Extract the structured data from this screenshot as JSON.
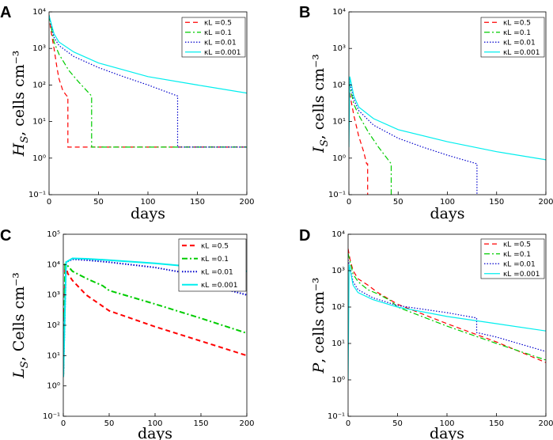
{
  "chart_data": [
    {
      "type": "line",
      "label": "A",
      "ylabel_main": "H",
      "ylabel_sub": "S",
      "ylabel_rest": ", cells cm⁻³",
      "xlabel": "days",
      "log_y": true,
      "legend": "upper right",
      "line_width": 1.2,
      "xlim": [
        0,
        200
      ],
      "xticks": [
        0,
        50,
        100,
        150,
        200
      ],
      "ylim": [
        0.1,
        10000
      ],
      "yticks": [
        {
          "value": 0.1,
          "label": "10⁻¹"
        },
        {
          "value": 1,
          "label": "10⁰"
        },
        {
          "value": 10,
          "label": "10¹"
        },
        {
          "value": 100,
          "label": "10²"
        },
        {
          "value": 1000,
          "label": "10³"
        },
        {
          "value": 10000,
          "label": "10⁴"
        }
      ],
      "series": [
        {
          "name": "κL =0.5",
          "color": "#ff0000",
          "dash": "dashed",
          "x": [
            0,
            2,
            5,
            8,
            10,
            14,
            18,
            19,
            19,
            200
          ],
          "values": [
            8000,
            3000,
            1000,
            300,
            150,
            70,
            50,
            50,
            2,
            2
          ]
        },
        {
          "name": "κL =0.1",
          "color": "#00cc00",
          "dash": "dashdot",
          "x": [
            0,
            5,
            10,
            20,
            30,
            43,
            43,
            200
          ],
          "values": [
            8000,
            1500,
            700,
            250,
            120,
            50,
            2,
            2
          ]
        },
        {
          "name": "κL =0.01",
          "color": "#0000cc",
          "dash": "dotted",
          "x": [
            0,
            5,
            10,
            25,
            50,
            75,
            100,
            130,
            130,
            200
          ],
          "values": [
            8000,
            2000,
            1200,
            600,
            300,
            170,
            100,
            50,
            2,
            2
          ]
        },
        {
          "name": "κL =0.001",
          "color": "#00eeee",
          "dash": "solid",
          "x": [
            0,
            5,
            10,
            25,
            50,
            100,
            150,
            200
          ],
          "values": [
            8000,
            2500,
            1500,
            800,
            400,
            170,
            100,
            60
          ]
        }
      ]
    },
    {
      "type": "line",
      "label": "B",
      "ylabel_main": "I",
      "ylabel_sub": "S",
      "ylabel_rest": ", cells cm⁻³",
      "xlabel": "days",
      "log_y": true,
      "legend": "upper right",
      "line_width": 1.2,
      "xlim": [
        0,
        200
      ],
      "xticks": [
        0,
        50,
        100,
        150,
        200
      ],
      "ylim": [
        0.1,
        10000
      ],
      "yticks": [
        {
          "value": 0.1,
          "label": "10⁻¹"
        },
        {
          "value": 1,
          "label": "10⁰"
        },
        {
          "value": 10,
          "label": "10¹"
        },
        {
          "value": 100,
          "label": "10²"
        },
        {
          "value": 1000,
          "label": "10³"
        },
        {
          "value": 10000,
          "label": "10⁴"
        }
      ],
      "series": [
        {
          "name": "κL =0.5",
          "color": "#ff0000",
          "dash": "dashed",
          "x": [
            0,
            2,
            5,
            10,
            15,
            18,
            19,
            19
          ],
          "values": [
            100,
            40,
            15,
            4,
            1.5,
            0.7,
            0.7,
            0.1
          ]
        },
        {
          "name": "κL =0.1",
          "color": "#00cc00",
          "dash": "dashdot",
          "x": [
            0,
            5,
            10,
            20,
            30,
            43,
            43
          ],
          "values": [
            120,
            30,
            15,
            5,
            2,
            0.7,
            0.1
          ]
        },
        {
          "name": "κL =0.01",
          "color": "#0000cc",
          "dash": "dotted",
          "x": [
            0,
            5,
            10,
            25,
            50,
            75,
            100,
            130,
            130
          ],
          "values": [
            150,
            40,
            20,
            8,
            3.5,
            2,
            1.2,
            0.7,
            0.1
          ]
        },
        {
          "name": "κL =0.001",
          "color": "#00eeee",
          "dash": "solid",
          "x": [
            0,
            1,
            5,
            10,
            25,
            50,
            100,
            150,
            200
          ],
          "values": [
            2,
            170,
            50,
            25,
            12,
            6,
            2.8,
            1.5,
            0.9
          ]
        }
      ]
    },
    {
      "type": "line",
      "label": "C",
      "ylabel_main": "L",
      "ylabel_sub": "S",
      "ylabel_rest": ", Cells cm⁻³",
      "xlabel": "days",
      "log_y": true,
      "legend": "upper right",
      "line_width": 2,
      "xlim": [
        0,
        200
      ],
      "xticks": [
        0,
        50,
        100,
        150,
        200
      ],
      "ylim": [
        0.1,
        100000
      ],
      "yticks": [
        {
          "value": 0.1,
          "label": "10⁻¹"
        },
        {
          "value": 1,
          "label": "10⁰"
        },
        {
          "value": 10,
          "label": "10¹"
        },
        {
          "value": 100,
          "label": "10²"
        },
        {
          "value": 1000,
          "label": "10³"
        },
        {
          "value": 10000,
          "label": "10⁴"
        },
        {
          "value": 100000,
          "label": "10⁵"
        }
      ],
      "series": [
        {
          "name": "κL =0.5",
          "color": "#ff0000",
          "dash": "dashed",
          "x": [
            0,
            2,
            5,
            10,
            25,
            50,
            100,
            150,
            200
          ],
          "values": [
            2,
            10000,
            5000,
            3000,
            1000,
            300,
            90,
            30,
            10
          ]
        },
        {
          "name": "κL =0.1",
          "color": "#00cc00",
          "dash": "dashdot",
          "x": [
            0,
            2,
            5,
            10,
            25,
            43,
            50,
            100,
            150,
            200
          ],
          "values": [
            2,
            10000,
            9000,
            6000,
            3500,
            2000,
            1400,
            500,
            170,
            55
          ]
        },
        {
          "name": "κL =0.01",
          "color": "#0000cc",
          "dash": "dotted",
          "x": [
            0,
            3,
            10,
            25,
            50,
            100,
            130,
            130,
            150,
            200
          ],
          "values": [
            2,
            12000,
            15000,
            14000,
            12000,
            8000,
            5500,
            4000,
            2500,
            1000
          ]
        },
        {
          "name": "κL =0.001",
          "color": "#00eeee",
          "dash": "solid",
          "x": [
            0,
            3,
            10,
            25,
            50,
            100,
            150,
            200
          ],
          "values": [
            2,
            12000,
            16000,
            15500,
            14000,
            11000,
            8000,
            6000
          ]
        }
      ]
    },
    {
      "type": "line",
      "label": "D",
      "ylabel_main": "P",
      "ylabel_sub": "",
      "ylabel_rest": ", cells cm⁻³",
      "xlabel": "days",
      "log_y": true,
      "legend": "upper right",
      "line_width": 1.2,
      "xlim": [
        0,
        200
      ],
      "xticks": [
        0,
        50,
        100,
        150,
        200
      ],
      "ylim": [
        0.1,
        10000
      ],
      "yticks": [
        {
          "value": 0.1,
          "label": "10⁻¹"
        },
        {
          "value": 1,
          "label": "10⁰"
        },
        {
          "value": 10,
          "label": "10¹"
        },
        {
          "value": 100,
          "label": "10²"
        },
        {
          "value": 1000,
          "label": "10³"
        },
        {
          "value": 10000,
          "label": "10⁴"
        }
      ],
      "series": [
        {
          "name": "κL =0.5",
          "color": "#ff0000",
          "dash": "dashed",
          "x": [
            0,
            2,
            5,
            10,
            20,
            30,
            50,
            100,
            150,
            200
          ],
          "values": [
            4000,
            2000,
            1000,
            600,
            400,
            250,
            120,
            35,
            11,
            3
          ]
        },
        {
          "name": "κL =0.1",
          "color": "#00cc00",
          "dash": "dashdot",
          "x": [
            0,
            5,
            10,
            20,
            30,
            43,
            50,
            100,
            150,
            200
          ],
          "values": [
            3000,
            800,
            500,
            300,
            230,
            150,
            100,
            30,
            10,
            3.5
          ]
        },
        {
          "name": "κL =0.01",
          "color": "#0000cc",
          "dash": "dotted",
          "x": [
            0,
            5,
            10,
            25,
            50,
            100,
            130,
            130,
            150,
            200
          ],
          "values": [
            2000,
            500,
            300,
            180,
            110,
            70,
            50,
            20,
            15,
            6
          ]
        },
        {
          "name": "κL =0.001",
          "color": "#00eeee",
          "dash": "solid",
          "x": [
            0,
            1,
            5,
            10,
            25,
            50,
            100,
            150,
            200
          ],
          "values": [
            1,
            1500,
            400,
            250,
            160,
            100,
            55,
            35,
            22
          ]
        }
      ]
    }
  ]
}
